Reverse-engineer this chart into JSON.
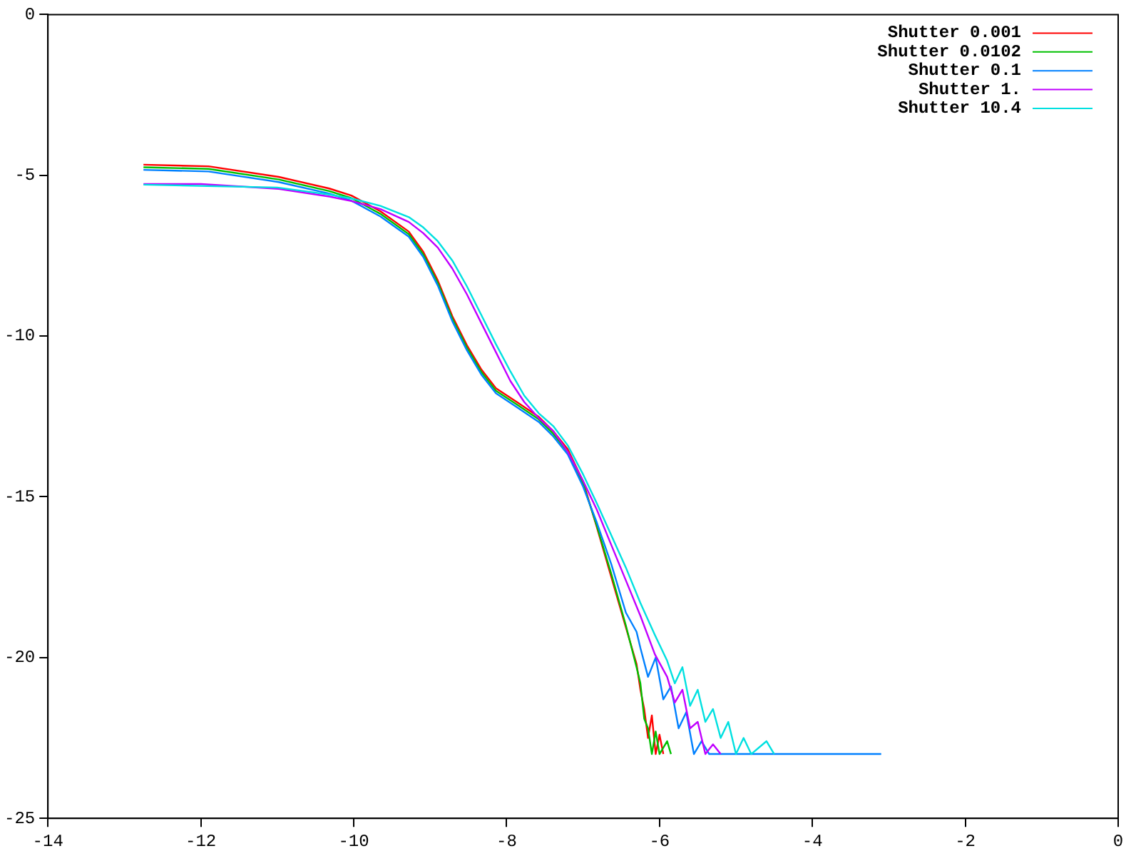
{
  "chart_data": {
    "type": "line",
    "xlim": [
      -14,
      0
    ],
    "ylim": [
      -25,
      0
    ],
    "xticks": [
      -14,
      -12,
      -10,
      -8,
      -6,
      -4,
      -2,
      0
    ],
    "yticks": [
      -25,
      -20,
      -15,
      -10,
      -5,
      0
    ],
    "grid": false,
    "legend": "top right",
    "marker": "none",
    "line_style": "solid",
    "series": [
      {
        "name": "Shutter 0.001",
        "color": "#ff0000",
        "x": [
          -12.75,
          -11.9,
          -10.98,
          -10.32,
          -10.03,
          -9.65,
          -9.28,
          -9.09,
          -8.9,
          -8.71,
          -8.52,
          -8.33,
          -8.14,
          -7.86,
          -7.58,
          -7.39,
          -7.2,
          -7.0,
          -6.82,
          -6.63,
          -6.44,
          -6.3,
          -6.25,
          -6.2,
          -6.15,
          -6.1,
          -6.05,
          -6.0,
          -5.95
        ],
        "values": [
          -4.67,
          -4.72,
          -5.05,
          -5.41,
          -5.63,
          -6.12,
          -6.75,
          -7.38,
          -8.27,
          -9.38,
          -10.28,
          -11.04,
          -11.62,
          -12.06,
          -12.51,
          -12.96,
          -13.52,
          -14.52,
          -15.94,
          -17.5,
          -19.06,
          -20.2,
          -21.0,
          -21.6,
          -22.5,
          -21.8,
          -23,
          -22.4,
          -23
        ]
      },
      {
        "name": "Shutter 0.0102",
        "color": "#00c000",
        "x": [
          -12.75,
          -11.9,
          -10.98,
          -10.32,
          -10.03,
          -9.65,
          -9.28,
          -9.09,
          -8.9,
          -8.71,
          -8.52,
          -8.33,
          -8.14,
          -7.86,
          -7.58,
          -7.39,
          -7.2,
          -7.0,
          -6.82,
          -6.63,
          -6.44,
          -6.3,
          -6.25,
          -6.2,
          -6.15,
          -6.1,
          -6.05,
          -6.0,
          -5.9,
          -5.85
        ],
        "values": [
          -4.75,
          -4.8,
          -5.13,
          -5.49,
          -5.71,
          -6.2,
          -6.83,
          -7.46,
          -8.35,
          -9.46,
          -10.36,
          -11.12,
          -11.7,
          -12.14,
          -12.59,
          -13.04,
          -13.6,
          -14.6,
          -15.9,
          -17.4,
          -19.0,
          -20.3,
          -20.8,
          -21.9,
          -22.2,
          -23,
          -22.3,
          -23,
          -22.6,
          -23
        ]
      },
      {
        "name": "Shutter 0.1",
        "color": "#0080ff",
        "x": [
          -12.75,
          -11.9,
          -10.98,
          -10.32,
          -10.03,
          -9.65,
          -9.28,
          -9.09,
          -8.9,
          -8.71,
          -8.52,
          -8.33,
          -8.14,
          -7.86,
          -7.58,
          -7.39,
          -7.2,
          -7.0,
          -6.82,
          -6.63,
          -6.44,
          -6.3,
          -6.25,
          -6.15,
          -6.05,
          -5.95,
          -5.85,
          -5.75,
          -5.65,
          -5.55,
          -5.45,
          -5.35,
          -3.1
        ],
        "values": [
          -4.83,
          -4.88,
          -5.21,
          -5.57,
          -5.79,
          -6.28,
          -6.91,
          -7.54,
          -8.43,
          -9.54,
          -10.44,
          -11.2,
          -11.78,
          -12.22,
          -12.67,
          -13.12,
          -13.68,
          -14.68,
          -15.8,
          -17.1,
          -18.6,
          -19.2,
          -19.7,
          -20.6,
          -20.0,
          -21.3,
          -20.9,
          -22.2,
          -21.7,
          -23,
          -22.6,
          -23,
          -23
        ]
      },
      {
        "name": "Shutter 1.",
        "color": "#c000ff",
        "x": [
          -12.75,
          -12.0,
          -10.98,
          -10.32,
          -10.03,
          -9.65,
          -9.28,
          -9.09,
          -8.9,
          -8.71,
          -8.52,
          -8.33,
          -8.14,
          -7.95,
          -7.77,
          -7.58,
          -7.39,
          -7.2,
          -7.0,
          -6.82,
          -6.63,
          -6.44,
          -6.25,
          -6.06,
          -5.9,
          -5.8,
          -5.7,
          -5.6,
          -5.5,
          -5.4,
          -5.3,
          -5.2
        ],
        "values": [
          -5.27,
          -5.27,
          -5.42,
          -5.66,
          -5.8,
          -6.05,
          -6.45,
          -6.8,
          -7.25,
          -7.9,
          -8.7,
          -9.6,
          -10.5,
          -11.4,
          -12.05,
          -12.55,
          -12.95,
          -13.6,
          -14.5,
          -15.4,
          -16.5,
          -17.6,
          -18.7,
          -19.9,
          -20.6,
          -21.4,
          -21.0,
          -22.2,
          -22.0,
          -23,
          -22.7,
          -23
        ]
      },
      {
        "name": "Shutter 10.4",
        "color": "#00e0e0",
        "x": [
          -12.75,
          -11.0,
          -10.32,
          -10.03,
          -9.65,
          -9.28,
          -9.09,
          -8.9,
          -8.71,
          -8.52,
          -8.33,
          -8.14,
          -7.95,
          -7.77,
          -7.58,
          -7.39,
          -7.2,
          -7.0,
          -6.82,
          -6.63,
          -6.44,
          -6.25,
          -6.06,
          -5.9,
          -5.8,
          -5.7,
          -5.6,
          -5.5,
          -5.4,
          -5.3,
          -5.2,
          -5.1,
          -5.0,
          -4.9,
          -4.8,
          -4.6,
          -4.5
        ],
        "values": [
          -5.29,
          -5.38,
          -5.6,
          -5.72,
          -5.95,
          -6.3,
          -6.62,
          -7.05,
          -7.65,
          -8.45,
          -9.35,
          -10.25,
          -11.1,
          -11.85,
          -12.4,
          -12.8,
          -13.4,
          -14.3,
          -15.2,
          -16.2,
          -17.2,
          -18.3,
          -19.3,
          -20.1,
          -20.8,
          -20.3,
          -21.5,
          -21.0,
          -22.0,
          -21.6,
          -22.5,
          -22.0,
          -23,
          -22.5,
          -23,
          -22.6,
          -23
        ]
      }
    ]
  }
}
